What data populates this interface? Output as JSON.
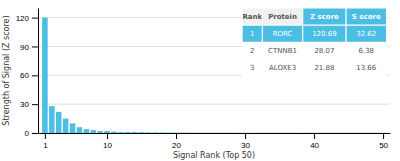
{
  "chart_data": {
    "type": "bar",
    "x": [
      1,
      2,
      3,
      4,
      5,
      6,
      7,
      8,
      9,
      10,
      11,
      12,
      13,
      14,
      15,
      16,
      17,
      18,
      19,
      20,
      21,
      22,
      23,
      24,
      25,
      26,
      27,
      28,
      29,
      30,
      31,
      32,
      33,
      34,
      35,
      36,
      37,
      38,
      39,
      40,
      41,
      42,
      43,
      44,
      45,
      46,
      47,
      48,
      49,
      50
    ],
    "values": [
      120,
      28,
      22,
      15,
      10,
      6,
      4,
      3,
      2,
      2,
      1.5,
      1,
      1,
      1,
      0.8,
      0.7,
      0.6,
      0.5,
      0.4,
      0.4,
      0.3,
      0.3,
      0.3,
      0.2,
      0.2,
      0.2,
      0.2,
      0.2,
      0.1,
      0.1,
      0.1,
      0.1,
      0.1,
      0.1,
      0.1,
      0.1,
      0.1,
      0.1,
      0.1,
      0.1,
      0.1,
      0.1,
      0.1,
      0.1,
      0.1,
      0.1,
      0.1,
      0.1,
      0.1,
      0.1
    ],
    "color": "#4BBEE3",
    "xlabel": "Signal Rank (Top 50)",
    "ylabel": "Strength of Signal (Z score)",
    "xlim": [
      0,
      51
    ],
    "ylim": [
      0,
      130
    ],
    "xticks": [
      1,
      10,
      20,
      30,
      40,
      50
    ],
    "yticks": [
      0,
      30,
      60,
      90,
      120
    ],
    "grid": true,
    "table": {
      "header": [
        "Rank",
        "Protein",
        "Z score",
        "S score"
      ],
      "rows": [
        [
          "1",
          "RORC",
          "120.69",
          "32.62"
        ],
        [
          "2",
          "CTNNB1",
          "28.07",
          "6.38"
        ],
        [
          "3",
          "ALOXE3",
          "21.88",
          "13.66"
        ]
      ],
      "color": "#4BBEE3"
    }
  }
}
